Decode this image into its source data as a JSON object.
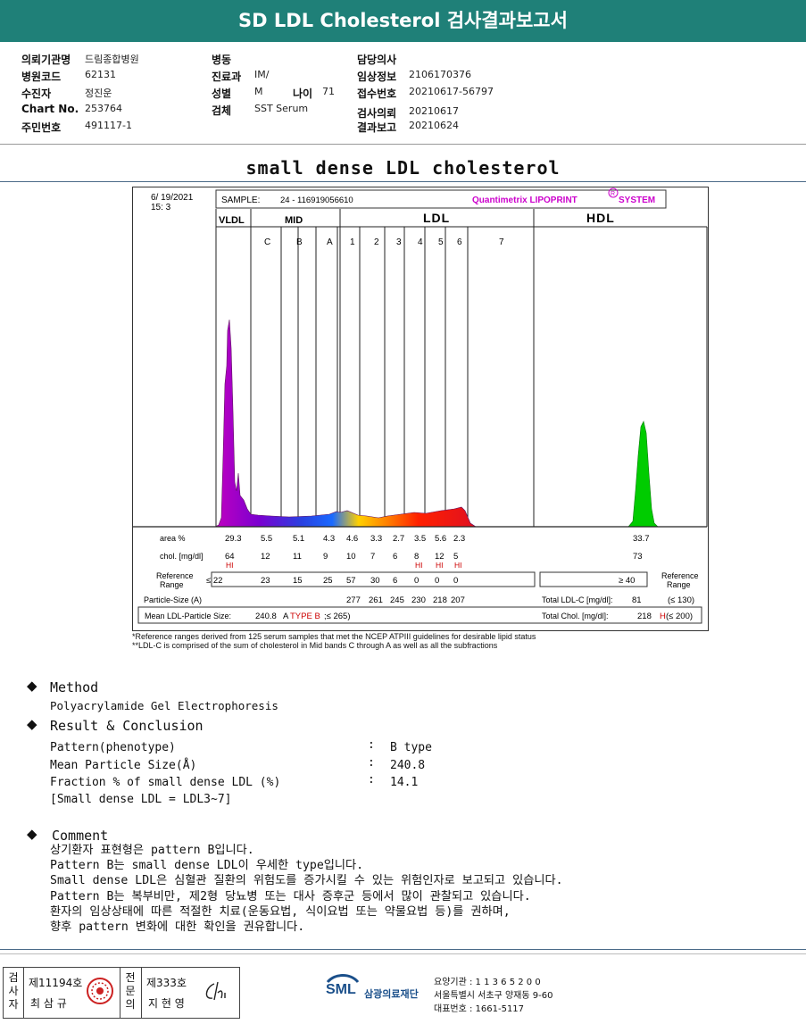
{
  "header": {
    "title": "SD LDL Cholesterol 검사결과보고서"
  },
  "patient_info": {
    "col1": [
      {
        "label": "의뢰기관명",
        "value": "드림종합병원"
      },
      {
        "label": "병원코드",
        "value": "62131"
      },
      {
        "label": "수진자",
        "value": "정진운"
      },
      {
        "label": "Chart No.",
        "value": "253764"
      },
      {
        "label": "주민번호",
        "value": "491117-1"
      }
    ],
    "col2": [
      {
        "label": "병동",
        "value": ""
      },
      {
        "label": "진료과",
        "value": "IM/"
      },
      {
        "label": "성별",
        "value": "M"
      },
      {
        "label": "검체",
        "value": "SST Serum"
      }
    ],
    "age_label": "나이",
    "age_value": "71",
    "col3": [
      {
        "label": "담당의사",
        "value": ""
      },
      {
        "label": "임상정보",
        "value": "2106170376"
      },
      {
        "label": "접수번호",
        "value": "20210617-56797"
      },
      {
        "label": "검사의뢰",
        "value": "20210617"
      },
      {
        "label": "결과보고",
        "value": "20210624"
      }
    ]
  },
  "section_title": "small dense LDL cholesterol",
  "report": {
    "date": "6/ 19/2021",
    "time": "15:  3",
    "sample_label": "SAMPLE:",
    "sample_value": "24 - 116919056610",
    "brand": "Quantimetrix LIPOPRINT",
    "brand_mark": "R",
    "brand_suffix": "SYSTEM",
    "groups": {
      "vldl": "VLDL",
      "mid": "MID",
      "ldl": "LDL",
      "hdl": "HDL"
    },
    "bands": [
      "C",
      "B",
      "A",
      "1",
      "2",
      "3",
      "4",
      "5",
      "6",
      "7"
    ],
    "row_area": {
      "label": "area %",
      "values": [
        "29.3",
        "5.5",
        "5.1",
        "4.3",
        "4.6",
        "3.3",
        "2.7",
        "3.5",
        "5.6",
        "2.3"
      ],
      "hdl": "33.7"
    },
    "row_chol": {
      "label": "chol. [mg/dl]",
      "values": [
        "64",
        "12",
        "11",
        "9",
        "10",
        "7",
        "6",
        "8",
        "12",
        "5"
      ],
      "hdl": "73"
    },
    "hi_flag": "HI",
    "ref_label_1": "Reference",
    "ref_label_2": "Range",
    "ref_values": [
      "≤ 22",
      "23",
      "15",
      "25",
      "57",
      "30",
      "6",
      "0",
      "0",
      "0"
    ],
    "ref_hdl": "≥  40",
    "particle_label": "Particle-Size (A)",
    "particle_values": [
      "277",
      "261",
      "245",
      "230",
      "218",
      "207"
    ],
    "mean_label": "Mean LDL-Particle Size:",
    "mean_value": "240.8",
    "mean_unit": "A",
    "mean_type": "TYPE B",
    "mean_ref": ";≤ 265)",
    "total_ldl_label": "Total LDL-C  [mg/dl]:",
    "total_ldl_value": "81",
    "total_ldl_ref": "(≤ 130)",
    "total_chol_label": "Total Chol.  [mg/dl]:",
    "total_chol_value": "218",
    "total_chol_flag": "H",
    "total_chol_ref": "(≤ 200)"
  },
  "chart_data": {
    "type": "area",
    "title": "",
    "xlabel": "",
    "ylabel": "",
    "bands": [
      "VLDL",
      "C",
      "B",
      "A",
      "1",
      "2",
      "3",
      "4",
      "5",
      "6",
      "7",
      "HDL"
    ],
    "area_percent": [
      29.3,
      5.5,
      5.1,
      4.3,
      4.6,
      3.3,
      2.7,
      3.5,
      5.6,
      2.3,
      0,
      33.7
    ],
    "cholesterol_mg_dl": [
      64,
      12,
      11,
      9,
      10,
      7,
      6,
      8,
      12,
      5,
      0,
      73
    ],
    "grid": false
  },
  "notes": [
    "*Reference ranges derived from 125 serum samples that met the NCEP ATPIII guidelines for desirable lipid status",
    "**LDL-C is comprised of the sum of cholesterol in Mid bands C through A as well as all the subfractions"
  ],
  "method": {
    "heading": "Method",
    "text": "Polyacrylamide Gel Electrophoresis"
  },
  "result": {
    "heading": "Result & Conclusion",
    "rows": [
      {
        "label": "Pattern(phenotype)",
        "value": "B type"
      },
      {
        "label": "Mean Particle Size(Å)",
        "value": "240.8"
      },
      {
        "label": "Fraction % of small dense LDL (%)",
        "value": "14.1"
      }
    ],
    "note": "[Small dense LDL = LDL3~7]",
    "sep": ":"
  },
  "comment": {
    "heading": "Comment",
    "lines": [
      "상기환자 표현형은 pattern B입니다.",
      "Pattern B는 small dense LDL이 우세한 type입니다.",
      "Small dense LDL은 심혈관 질환의 위험도를 증가시킬 수 있는 위험인자로 보고되고 있습니다.",
      "Pattern B는 복부비만, 제2형 당뇨병 또는 대사 증후군 등에서 많이 관찰되고 있습니다.",
      "환자의 임상상태에 따른 적절한 치료(운동요법, 식이요법 또는 약물요법 등)를 권하며,",
      "향후 pattern 변화에 대한 확인을 권유합니다."
    ]
  },
  "footer": {
    "inspector_label": "검사자",
    "inspector_no": "제11194호",
    "inspector_name": "최 삼 규",
    "doctor_label": "전문의",
    "doctor_no": "제333호",
    "doctor_name": "지 현 영",
    "org_logo": "SML",
    "org_name": "삼광의료재단",
    "org_lines": [
      "요양기관 : 1 1 3 6 5 2 0 0",
      "서울특별시 서초구 양재동 9-60",
      "대표번호 : 1661-5117"
    ]
  },
  "colors": {
    "header": "#1f8078",
    "vldl": "#c000c0",
    "hdl": "#00cc00",
    "hi": "#cc0000",
    "brand": "#cc00cc"
  }
}
